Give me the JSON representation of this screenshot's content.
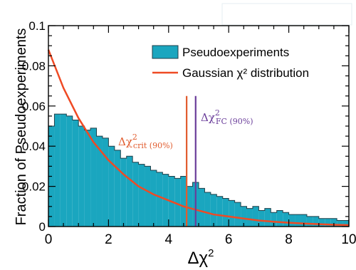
{
  "chart_data": {
    "type": "bar",
    "xlabel": "Δχ²",
    "ylabel": "Fraction of Pseudoexperiments",
    "xlim": [
      0,
      10
    ],
    "ylim": [
      0,
      0.1
    ],
    "x_ticks": [
      0,
      2,
      4,
      6,
      8,
      10
    ],
    "x_tick_labels": [
      "0",
      "2",
      "4",
      "6",
      "8",
      "10"
    ],
    "y_ticks": [
      0,
      0.02,
      0.04,
      0.06,
      0.08,
      0.1
    ],
    "y_tick_labels": [
      "0",
      "0.02",
      "0.04",
      "0.06",
      "0.08",
      "0.1"
    ],
    "legend_position": "top-right",
    "legend": [
      {
        "label": "Pseudoexperiments",
        "kind": "fill"
      },
      {
        "label": "Gaussian χ² distribution",
        "kind": "line"
      }
    ],
    "series": [
      {
        "name": "Pseudoexperiments",
        "kind": "histogram",
        "bin_width": 0.2,
        "bin_edges_start": 0,
        "values": [
          0.05,
          0.056,
          0.056,
          0.055,
          0.053,
          0.05,
          0.048,
          0.049,
          0.045,
          0.044,
          0.04,
          0.038,
          0.034,
          0.035,
          0.032,
          0.031,
          0.03,
          0.028,
          0.027,
          0.026,
          0.025,
          0.024,
          0.025,
          0.02,
          0.022,
          0.019,
          0.017,
          0.016,
          0.015,
          0.014,
          0.013,
          0.012,
          0.01,
          0.009,
          0.01,
          0.008,
          0.009,
          0.007,
          0.008,
          0.007,
          0.006,
          0.006,
          0.006,
          0.005,
          0.005,
          0.004,
          0.004,
          0.004,
          0.003,
          0.003
        ]
      },
      {
        "name": "Gaussian χ² distribution",
        "kind": "curve",
        "x": [
          0,
          0.5,
          1,
          1.5,
          2,
          2.5,
          3,
          3.5,
          4,
          4.5,
          5,
          5.5,
          6,
          6.5,
          7,
          7.5,
          8,
          8.5,
          9,
          9.5,
          10
        ],
        "y": [
          0.088,
          0.069,
          0.054,
          0.042,
          0.033,
          0.026,
          0.02,
          0.016,
          0.013,
          0.01,
          0.008,
          0.006,
          0.005,
          0.004,
          0.003,
          0.0024,
          0.0019,
          0.0015,
          0.0012,
          0.0009,
          0.0007
        ]
      }
    ],
    "vertical_lines": [
      {
        "x": 4.6,
        "label": "Δχ²crit (90%)",
        "color": "#e15c2e"
      },
      {
        "x": 4.9,
        "label": "Δχ²FC (90%)",
        "color": "#6a3d9a"
      }
    ],
    "colors": {
      "histogram_fill": "#1aa6bf",
      "histogram_edge": "#1f3f48",
      "curve": "#ef4a24",
      "crit_line": "#e15c2e",
      "fc_line": "#6a3d9a"
    }
  },
  "labels": {
    "crit_prefix": "Δχ",
    "crit_sup": "2",
    "crit_sub": "crit (90%)",
    "fc_prefix": "Δχ",
    "fc_sup": "2",
    "fc_sub": "FC (90%)",
    "xaxis_prefix": "Δχ",
    "xaxis_sup": "2"
  }
}
